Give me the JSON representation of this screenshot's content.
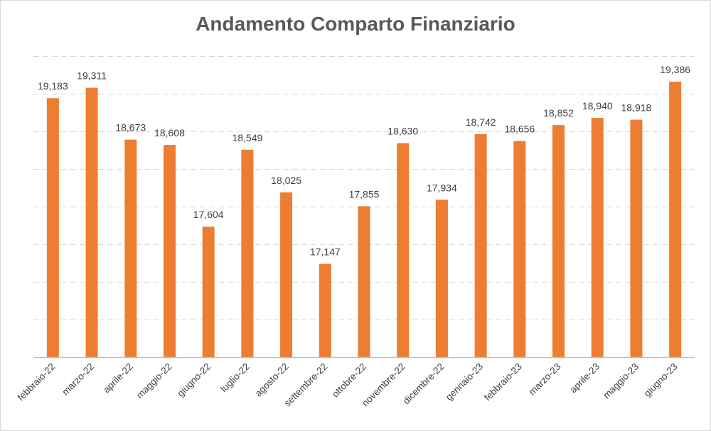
{
  "chart_data": {
    "type": "bar",
    "title": "Andamento Comparto Finanziario",
    "categories": [
      "febbraio-22",
      "marzo-22",
      "aprile-22",
      "maggio-22",
      "giugno-22",
      "luglio-22",
      "agosto-22",
      "settembre-22",
      "ottobre-22",
      "novembre-22",
      "dicembre-22",
      "gennaio-23",
      "febbraio-23",
      "marzo-23",
      "aprile-23",
      "maggio-23",
      "giugno-23"
    ],
    "series": [
      {
        "values": [
          19.183,
          19.311,
          18.673,
          18.608,
          17.604,
          18.549,
          18.025,
          17.147,
          17.855,
          18.63,
          17.934,
          18.742,
          18.656,
          18.852,
          18.94,
          18.918,
          19.386
        ],
        "labels": [
          "19,183",
          "19,311",
          "18,673",
          "18,608",
          "17,604",
          "18,549",
          "18,025",
          "17,147",
          "17,855",
          "18,630",
          "17,934",
          "18,742",
          "18,656",
          "18,852",
          "18,940",
          "18,918",
          "19,386"
        ],
        "color": "#ED7D31"
      }
    ],
    "ylim": [
      16.0,
      19.7
    ],
    "grid": true,
    "legend": "none",
    "xlabel": "",
    "ylabel": ""
  }
}
